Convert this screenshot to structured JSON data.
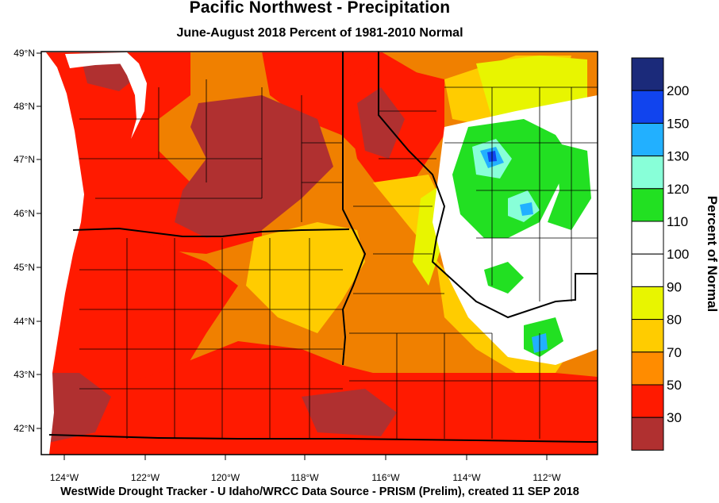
{
  "header": {
    "title": "Pacific Northwest - Precipitation",
    "subtitle": "June-August 2018  Percent of 1981-2010 Normal"
  },
  "footer": {
    "credit": "WestWide Drought Tracker - U Idaho/WRCC  Data Source - PRISM (Prelim), created 11 SEP 2018"
  },
  "map": {
    "lat_ticks": [
      "49°N",
      "48°N",
      "47°N",
      "46°N",
      "45°N",
      "44°N",
      "43°N",
      "42°N"
    ],
    "lon_ticks": [
      "124°W",
      "122°W",
      "120°W",
      "118°W",
      "116°W",
      "114°W",
      "112°W"
    ],
    "land_color": "#f08000"
  },
  "legend": {
    "title": "Percent of Normal",
    "labels": [
      "200",
      "150",
      "130",
      "120",
      "110",
      "100",
      "90",
      "80",
      "70",
      "50",
      "30"
    ],
    "colors": [
      "#1b2a7a",
      "#1144ee",
      "#22b0ff",
      "#88ffd8",
      "#22e022",
      "#ffffff",
      "#ffffff",
      "#e8f500",
      "#ffcc00",
      "#ff8c00",
      "#ff1a00",
      "#b03030"
    ]
  }
}
